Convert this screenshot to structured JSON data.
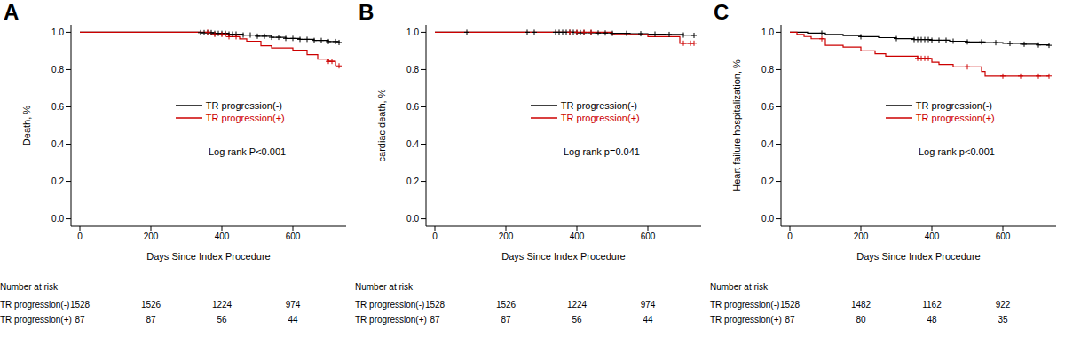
{
  "chart_data": [
    {
      "type": "line",
      "label": "A",
      "y_label": "Death, %",
      "x_label": "Days Since Index Procedure",
      "annotation": "Log rank P<0.001",
      "legend": "center",
      "xlim": [
        -25,
        750
      ],
      "ylim": [
        -0.04,
        1.04
      ],
      "xticks": [
        0,
        200,
        400,
        600
      ],
      "yticks": [
        {
          "value": 0,
          "label": "0.0"
        },
        0.2,
        0.4,
        0.6,
        0.8,
        {
          "value": 1,
          "label": "1.0"
        }
      ],
      "series": [
        {
          "name": "TR progression(-)",
          "color": "#000000",
          "line_style": "step",
          "marker": "plus",
          "x": [
            0,
            340,
            380,
            420,
            460,
            500,
            540,
            580,
            620,
            660,
            700,
            730
          ],
          "values": [
            1,
            0.998,
            0.994,
            0.99,
            0.985,
            0.979,
            0.973,
            0.967,
            0.962,
            0.956,
            0.95,
            0.945
          ],
          "censored": [
            340,
            350,
            360,
            370,
            380,
            390,
            400,
            410,
            420,
            430,
            440,
            460,
            480,
            500,
            520,
            540,
            560,
            580,
            600,
            620,
            640,
            660,
            680,
            700,
            720,
            730
          ]
        },
        {
          "name": "TR progression(+)",
          "color": "#cc0000",
          "line_style": "step",
          "marker": "plus",
          "x": [
            0,
            370,
            420,
            450,
            470,
            510,
            540,
            600,
            640,
            670,
            700,
            720
          ],
          "values": [
            1,
            0.988,
            0.976,
            0.964,
            0.952,
            0.928,
            0.916,
            0.904,
            0.88,
            0.856,
            0.844,
            0.82
          ],
          "censored": [
            360,
            380,
            400,
            410,
            420,
            440,
            700,
            710,
            730
          ]
        }
      ],
      "risk_table": {
        "title": "Number at risk",
        "times": [
          0,
          200,
          400,
          600
        ],
        "rows": [
          {
            "name": "TR progression(-)",
            "counts": [
              1528,
              1526,
              1224,
              974
            ]
          },
          {
            "name": "TR progression(+)",
            "counts": [
              87,
              87,
              56,
              44
            ]
          }
        ]
      }
    },
    {
      "type": "line",
      "label": "B",
      "y_label": "cardiac death, %",
      "x_label": "Days Since Index Procedure",
      "annotation": "Log rank p=0.041",
      "legend": "center",
      "xlim": [
        -25,
        750
      ],
      "ylim": [
        -0.04,
        1.04
      ],
      "xticks": [
        0,
        200,
        400,
        600
      ],
      "yticks": [
        {
          "value": 0,
          "label": "0.0"
        },
        0.2,
        0.4,
        0.6,
        0.8,
        {
          "value": 1,
          "label": "1.0"
        }
      ],
      "series": [
        {
          "name": "TR progression(-)",
          "color": "#000000",
          "line_style": "step",
          "marker": "plus",
          "x": [
            0,
            400,
            450,
            500,
            550,
            600,
            650,
            700,
            730
          ],
          "values": [
            1,
            0.998,
            0.996,
            0.994,
            0.992,
            0.99,
            0.988,
            0.985,
            0.983
          ],
          "censored": [
            90,
            260,
            280,
            340,
            350,
            360,
            370,
            380,
            390,
            400,
            410,
            420,
            440,
            460,
            480,
            500,
            540,
            580,
            620,
            660,
            700,
            730
          ]
        },
        {
          "name": "TR progression(+)",
          "color": "#cc0000",
          "line_style": "step",
          "marker": "plus",
          "x": [
            0,
            500,
            600,
            690,
            730
          ],
          "values": [
            1,
            0.988,
            0.976,
            0.941,
            0.941
          ],
          "censored": [
            380,
            400,
            420,
            440,
            700,
            720,
            730
          ]
        }
      ],
      "risk_table": {
        "title": "Number at risk",
        "times": [
          0,
          200,
          400,
          600
        ],
        "rows": [
          {
            "name": "TR progression(-)",
            "counts": [
              1528,
              1526,
              1224,
              974
            ]
          },
          {
            "name": "TR progression(+)",
            "counts": [
              87,
              87,
              56,
              44
            ]
          }
        ]
      }
    },
    {
      "type": "line",
      "label": "C",
      "y_label": "Heart failure hospitalization, %",
      "x_label": "Days Since Index Procedure",
      "annotation": "Log rank p<0.001",
      "legend": "center",
      "xlim": [
        -25,
        750
      ],
      "ylim": [
        -0.04,
        1.04
      ],
      "xticks": [
        0,
        200,
        400,
        600
      ],
      "yticks": [
        {
          "value": 0,
          "label": "0.0"
        },
        0.2,
        0.4,
        0.6,
        0.8,
        {
          "value": 1,
          "label": "1.0"
        }
      ],
      "series": [
        {
          "name": "TR progression(-)",
          "color": "#000000",
          "line_style": "step",
          "marker": "plus",
          "x": [
            0,
            50,
            100,
            150,
            200,
            250,
            300,
            350,
            400,
            450,
            500,
            550,
            600,
            650,
            700,
            730
          ],
          "values": [
            1,
            0.995,
            0.988,
            0.982,
            0.976,
            0.971,
            0.966,
            0.961,
            0.957,
            0.952,
            0.948,
            0.944,
            0.94,
            0.936,
            0.932,
            0.93
          ],
          "censored": [
            90,
            200,
            300,
            350,
            360,
            370,
            380,
            390,
            400,
            420,
            440,
            460,
            500,
            540,
            580,
            620,
            660,
            700,
            730
          ]
        },
        {
          "name": "TR progression(+)",
          "color": "#cc0000",
          "line_style": "step",
          "marker": "plus",
          "x": [
            0,
            20,
            40,
            60,
            100,
            150,
            200,
            240,
            270,
            360,
            400,
            420,
            460,
            540,
            550,
            730
          ],
          "values": [
            1,
            0.988,
            0.977,
            0.965,
            0.93,
            0.92,
            0.9,
            0.885,
            0.872,
            0.86,
            0.84,
            0.828,
            0.815,
            0.79,
            0.765,
            0.765
          ],
          "censored": [
            90,
            360,
            370,
            380,
            390,
            500,
            600,
            650,
            700,
            730
          ]
        }
      ],
      "risk_table": {
        "title": "Number at risk",
        "times": [
          0,
          200,
          400,
          600
        ],
        "rows": [
          {
            "name": "TR progression(-)",
            "counts": [
              1528,
              1482,
              1162,
              922
            ]
          },
          {
            "name": "TR progression(+)",
            "counts": [
              87,
              80,
              48,
              35
            ]
          }
        ]
      }
    }
  ]
}
